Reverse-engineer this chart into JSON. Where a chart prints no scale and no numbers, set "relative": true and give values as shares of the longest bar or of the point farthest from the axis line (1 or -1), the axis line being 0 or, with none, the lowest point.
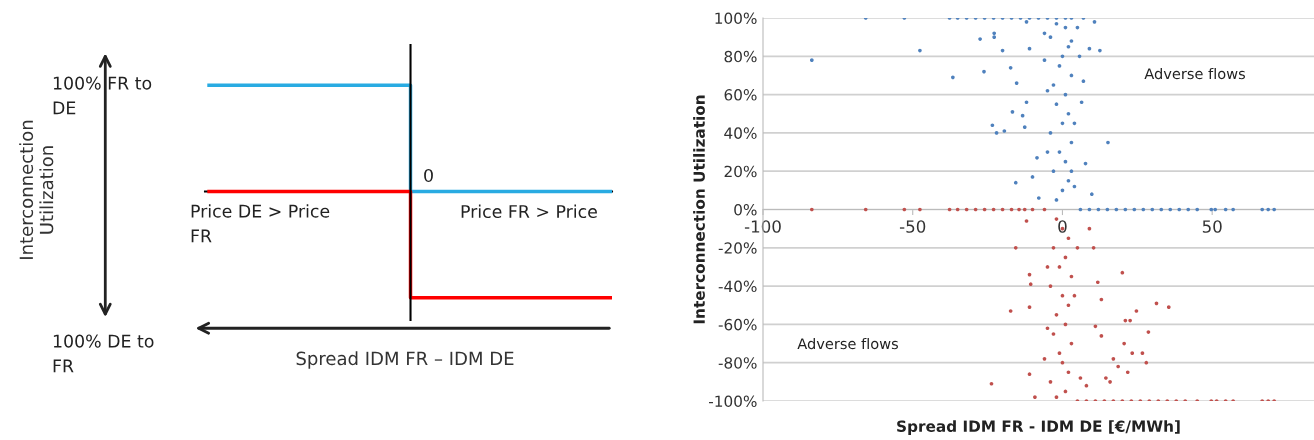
{
  "chart_data": [
    {
      "type": "step",
      "relative": true,
      "categories": [
        null,
        null,
        null
      ],
      "xlabel": "Spread IDM FR – IDM DE",
      "ylabel": "Interconnection\nUtilization",
      "annotations": [
        "100% FR to\nDE",
        "100% DE to\nFR",
        "0",
        "Price DE > Price\nFR",
        "Price FR > Price"
      ],
      "series": [
        {
          "color": "#29abe2",
          "values": [
            1,
            0,
            0
          ]
        },
        {
          "color": "#ff0000",
          "values": [
            0,
            -1,
            -1
          ]
        }
      ]
    },
    {
      "type": "scatter",
      "xlim": [
        -100,
        84
      ],
      "xticks": [
        -100,
        -50,
        0,
        50
      ],
      "ylim": [
        -100,
        100
      ],
      "yticks": [
        {
          "value": -100,
          "label": "-100%"
        },
        {
          "value": -80,
          "label": "-80%"
        },
        {
          "value": -60,
          "label": "-60%"
        },
        {
          "value": -40,
          "label": "-40%"
        },
        {
          "value": -20,
          "label": "-20%"
        },
        {
          "value": 0,
          "label": "0%"
        },
        {
          "value": 20,
          "label": "20%"
        },
        {
          "value": 40,
          "label": "40%"
        },
        {
          "value": 60,
          "label": "60%"
        },
        {
          "value": 80,
          "label": "80%"
        },
        {
          "value": 100,
          "label": "100%"
        }
      ],
      "xlabel": "Spread IDM FR - IDM DE [€/MWh]",
      "ylabel": "Interconnection Utilization",
      "grid": "y",
      "marker": "circle",
      "annotations": [
        "Adverse flows",
        "Adverse flows"
      ],
      "series": [
        {
          "color": "#4f81bd",
          "x": [
            -83.7,
            -65.7,
            -52.8,
            -47.6,
            -37.7,
            -36.6,
            -35,
            -32,
            -29,
            -27.5,
            -26.2,
            -26,
            -23,
            -22.8,
            -22.8,
            -23.4,
            -22,
            -20,
            -20,
            -19.4,
            -17,
            -16.7,
            -17.3,
            -15.3,
            -14,
            -12.6,
            -13.3,
            -12,
            -11,
            -12,
            -11,
            -10,
            -15.6,
            -8.5,
            -7.9,
            -8,
            -5,
            -2,
            1,
            3,
            7,
            10.7,
            9,
            12.5,
            15.2,
            9.8,
            7.7,
            6.4,
            7,
            5.7,
            5,
            -2,
            0,
            2,
            -3,
            1,
            -1,
            3,
            -4,
            0,
            2,
            -2,
            1,
            -3,
            3,
            -1,
            0,
            2,
            -4,
            1,
            -2,
            -5,
            4,
            -6,
            4,
            -5,
            3,
            -6,
            3,
            6,
            9,
            12,
            15,
            18,
            21,
            24,
            27,
            30,
            33,
            36,
            39,
            42,
            45,
            49.7,
            51,
            54.5,
            57,
            66.7,
            68.7,
            70.7
          ],
          "values": [
            78,
            100,
            100,
            83,
            100,
            69,
            100,
            100,
            100,
            89,
            72,
            100,
            100,
            92,
            90,
            44,
            40,
            83,
            100,
            41,
            100,
            51,
            74,
            66,
            100,
            43,
            49,
            56,
            84,
            98,
            100,
            17,
            14,
            27,
            6,
            100,
            100,
            100,
            100,
            100,
            100,
            98,
            84,
            83,
            35,
            8,
            24,
            56,
            67,
            80,
            95,
            5,
            10,
            15,
            20,
            25,
            30,
            35,
            40,
            45,
            50,
            55,
            60,
            65,
            70,
            75,
            80,
            85,
            90,
            95,
            97,
            62,
            45,
            78,
            12,
            30,
            88,
            92,
            20,
            0,
            0,
            0,
            0,
            0,
            0,
            0,
            0,
            0,
            0,
            0,
            0,
            0,
            0,
            0,
            0,
            0,
            0,
            0,
            0,
            0
          ]
        },
        {
          "color": "#c0504d",
          "x": [
            -83.7,
            -65.7,
            -52.8,
            -47.6,
            -37.7,
            -35,
            -32,
            -29,
            -26,
            -23,
            -20,
            -17,
            -14.5,
            -12.6,
            -10,
            -6,
            -12,
            -15.6,
            -11,
            -10.6,
            -17.3,
            -11,
            -23.7,
            -11,
            -9.2,
            9,
            10.4,
            13,
            20,
            21,
            22.6,
            24.7,
            28.7,
            31.4,
            35.5,
            20.6,
            23.3,
            26.7,
            28,
            17,
            18.6,
            21.8,
            15.9,
            13,
            11,
            11.8,
            14.5,
            -2,
            0,
            2,
            -3,
            1,
            -1,
            3,
            -4,
            0,
            2,
            -2,
            1,
            -3,
            3,
            -1,
            0,
            2,
            -4,
            1,
            -2,
            -5,
            4,
            -6,
            5,
            -5,
            6,
            8,
            5,
            8,
            11,
            14,
            17,
            20,
            23,
            26,
            29,
            32,
            35,
            38,
            41,
            45,
            49.7,
            51.5,
            54.5,
            57,
            66.7,
            68.7,
            70.7
          ],
          "values": [
            0,
            0,
            0,
            0,
            0,
            0,
            0,
            0,
            0,
            0,
            0,
            0,
            0,
            0,
            0,
            0,
            -6,
            -20,
            -34,
            -39,
            -53,
            -51,
            -91,
            -86,
            -98,
            -10,
            -20,
            -47,
            -33,
            -58,
            -58,
            -53,
            -64,
            -49,
            -51,
            -70,
            -75,
            -75,
            -80,
            -78,
            -82,
            -85,
            -90,
            -66,
            -61,
            -38,
            -88,
            -5,
            -10,
            -15,
            -20,
            -25,
            -30,
            -35,
            -40,
            -45,
            -50,
            -55,
            -60,
            -65,
            -70,
            -75,
            -80,
            -85,
            -90,
            -95,
            -98,
            -62,
            -45,
            -78,
            -20,
            -30,
            -88,
            -92,
            -100,
            -100,
            -100,
            -100,
            -100,
            -100,
            -100,
            -100,
            -100,
            -100,
            -100,
            -100,
            -100,
            -100,
            -100,
            -100,
            -100,
            -100,
            -100,
            -100,
            -100
          ]
        }
      ]
    }
  ]
}
